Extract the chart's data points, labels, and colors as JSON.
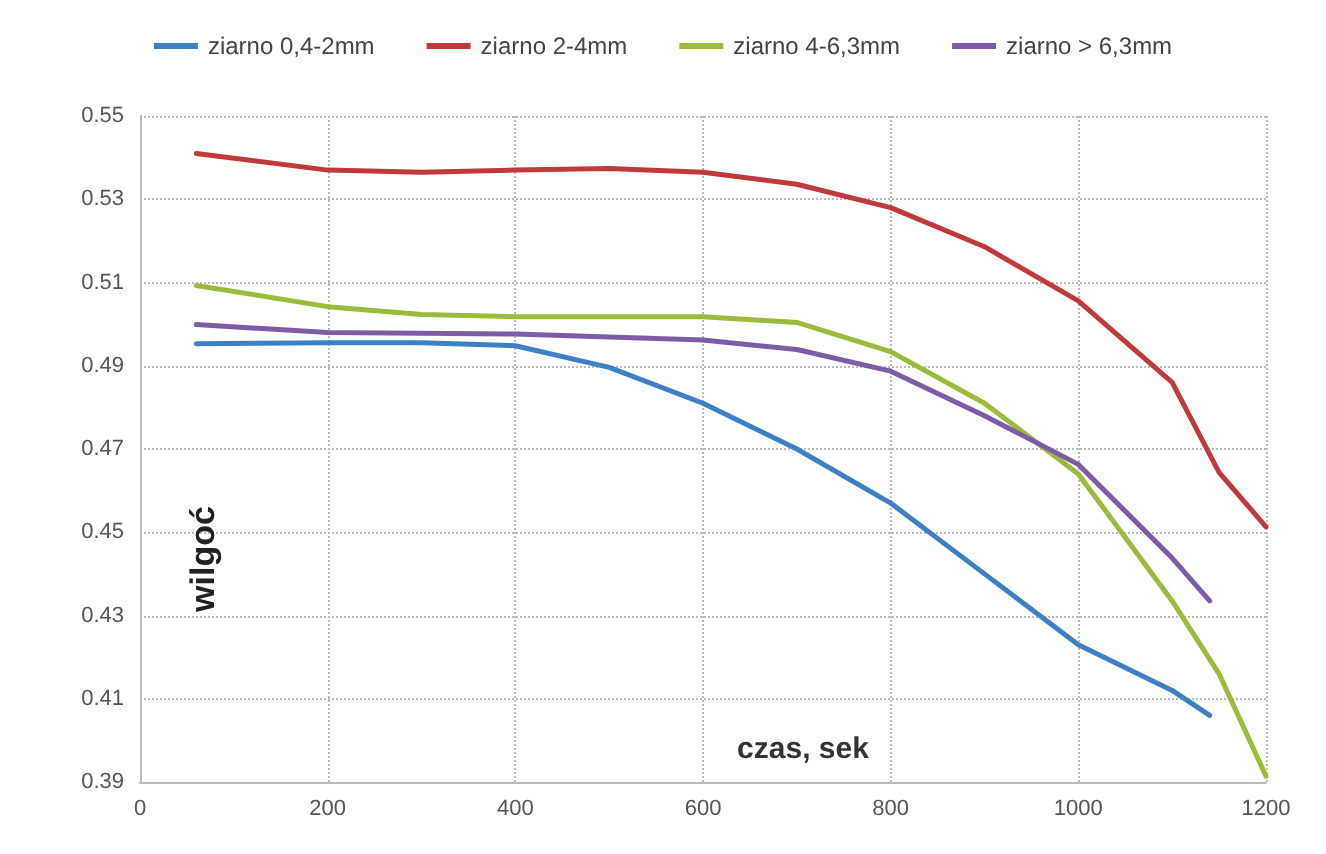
{
  "chart_data": {
    "type": "line",
    "xlabel": "czas, sek",
    "ylabel": "wilgoć",
    "xlim": [
      0,
      1200
    ],
    "xticks": [
      0,
      200,
      400,
      600,
      800,
      1000,
      1200
    ],
    "ylim": [
      0.39,
      0.55
    ],
    "yticks": [
      0.39,
      0.41,
      0.43,
      0.45,
      0.47,
      0.49,
      0.51,
      0.53,
      0.55
    ],
    "grid": true,
    "legend": "top",
    "marker": "none",
    "line_style": "solid",
    "series": [
      {
        "name": "ziarno 0,4-2mm",
        "color": "#3f7fc4",
        "x": [
          60,
          200,
          300,
          400,
          500,
          600,
          700,
          800,
          900,
          1000,
          1100,
          1140
        ],
        "values": [
          0.4953,
          0.4955,
          0.4955,
          0.4948,
          0.4896,
          0.481,
          0.47,
          0.457,
          0.44,
          0.423,
          0.412,
          0.406
        ]
      },
      {
        "name": "ziarno 2-4mm",
        "color": "#c0393b",
        "x": [
          60,
          200,
          300,
          400,
          500,
          600,
          700,
          800,
          900,
          1000,
          1100,
          1150,
          1200
        ],
        "values": [
          0.541,
          0.537,
          0.5365,
          0.537,
          0.5374,
          0.5365,
          0.5336,
          0.528,
          0.5186,
          0.5056,
          0.486,
          0.4644,
          0.4513
        ]
      },
      {
        "name": "ziarno 4-6,3mm",
        "color": "#9bbb3a",
        "x": [
          60,
          200,
          300,
          400,
          500,
          600,
          700,
          800,
          900,
          1000,
          1100,
          1150,
          1200
        ],
        "values": [
          0.5093,
          0.5042,
          0.5023,
          0.5018,
          0.5018,
          0.5018,
          0.5004,
          0.4934,
          0.481,
          0.464,
          0.4335,
          0.416,
          0.3914
        ]
      },
      {
        "name": "ziarno > 6,3mm",
        "color": "#7e5ba6",
        "x": [
          60,
          200,
          400,
          600,
          700,
          800,
          900,
          1000,
          1100,
          1140
        ],
        "values": [
          0.4999,
          0.498,
          0.4976,
          0.4962,
          0.4939,
          0.4887,
          0.478,
          0.4663,
          0.4438,
          0.4335
        ]
      }
    ]
  }
}
